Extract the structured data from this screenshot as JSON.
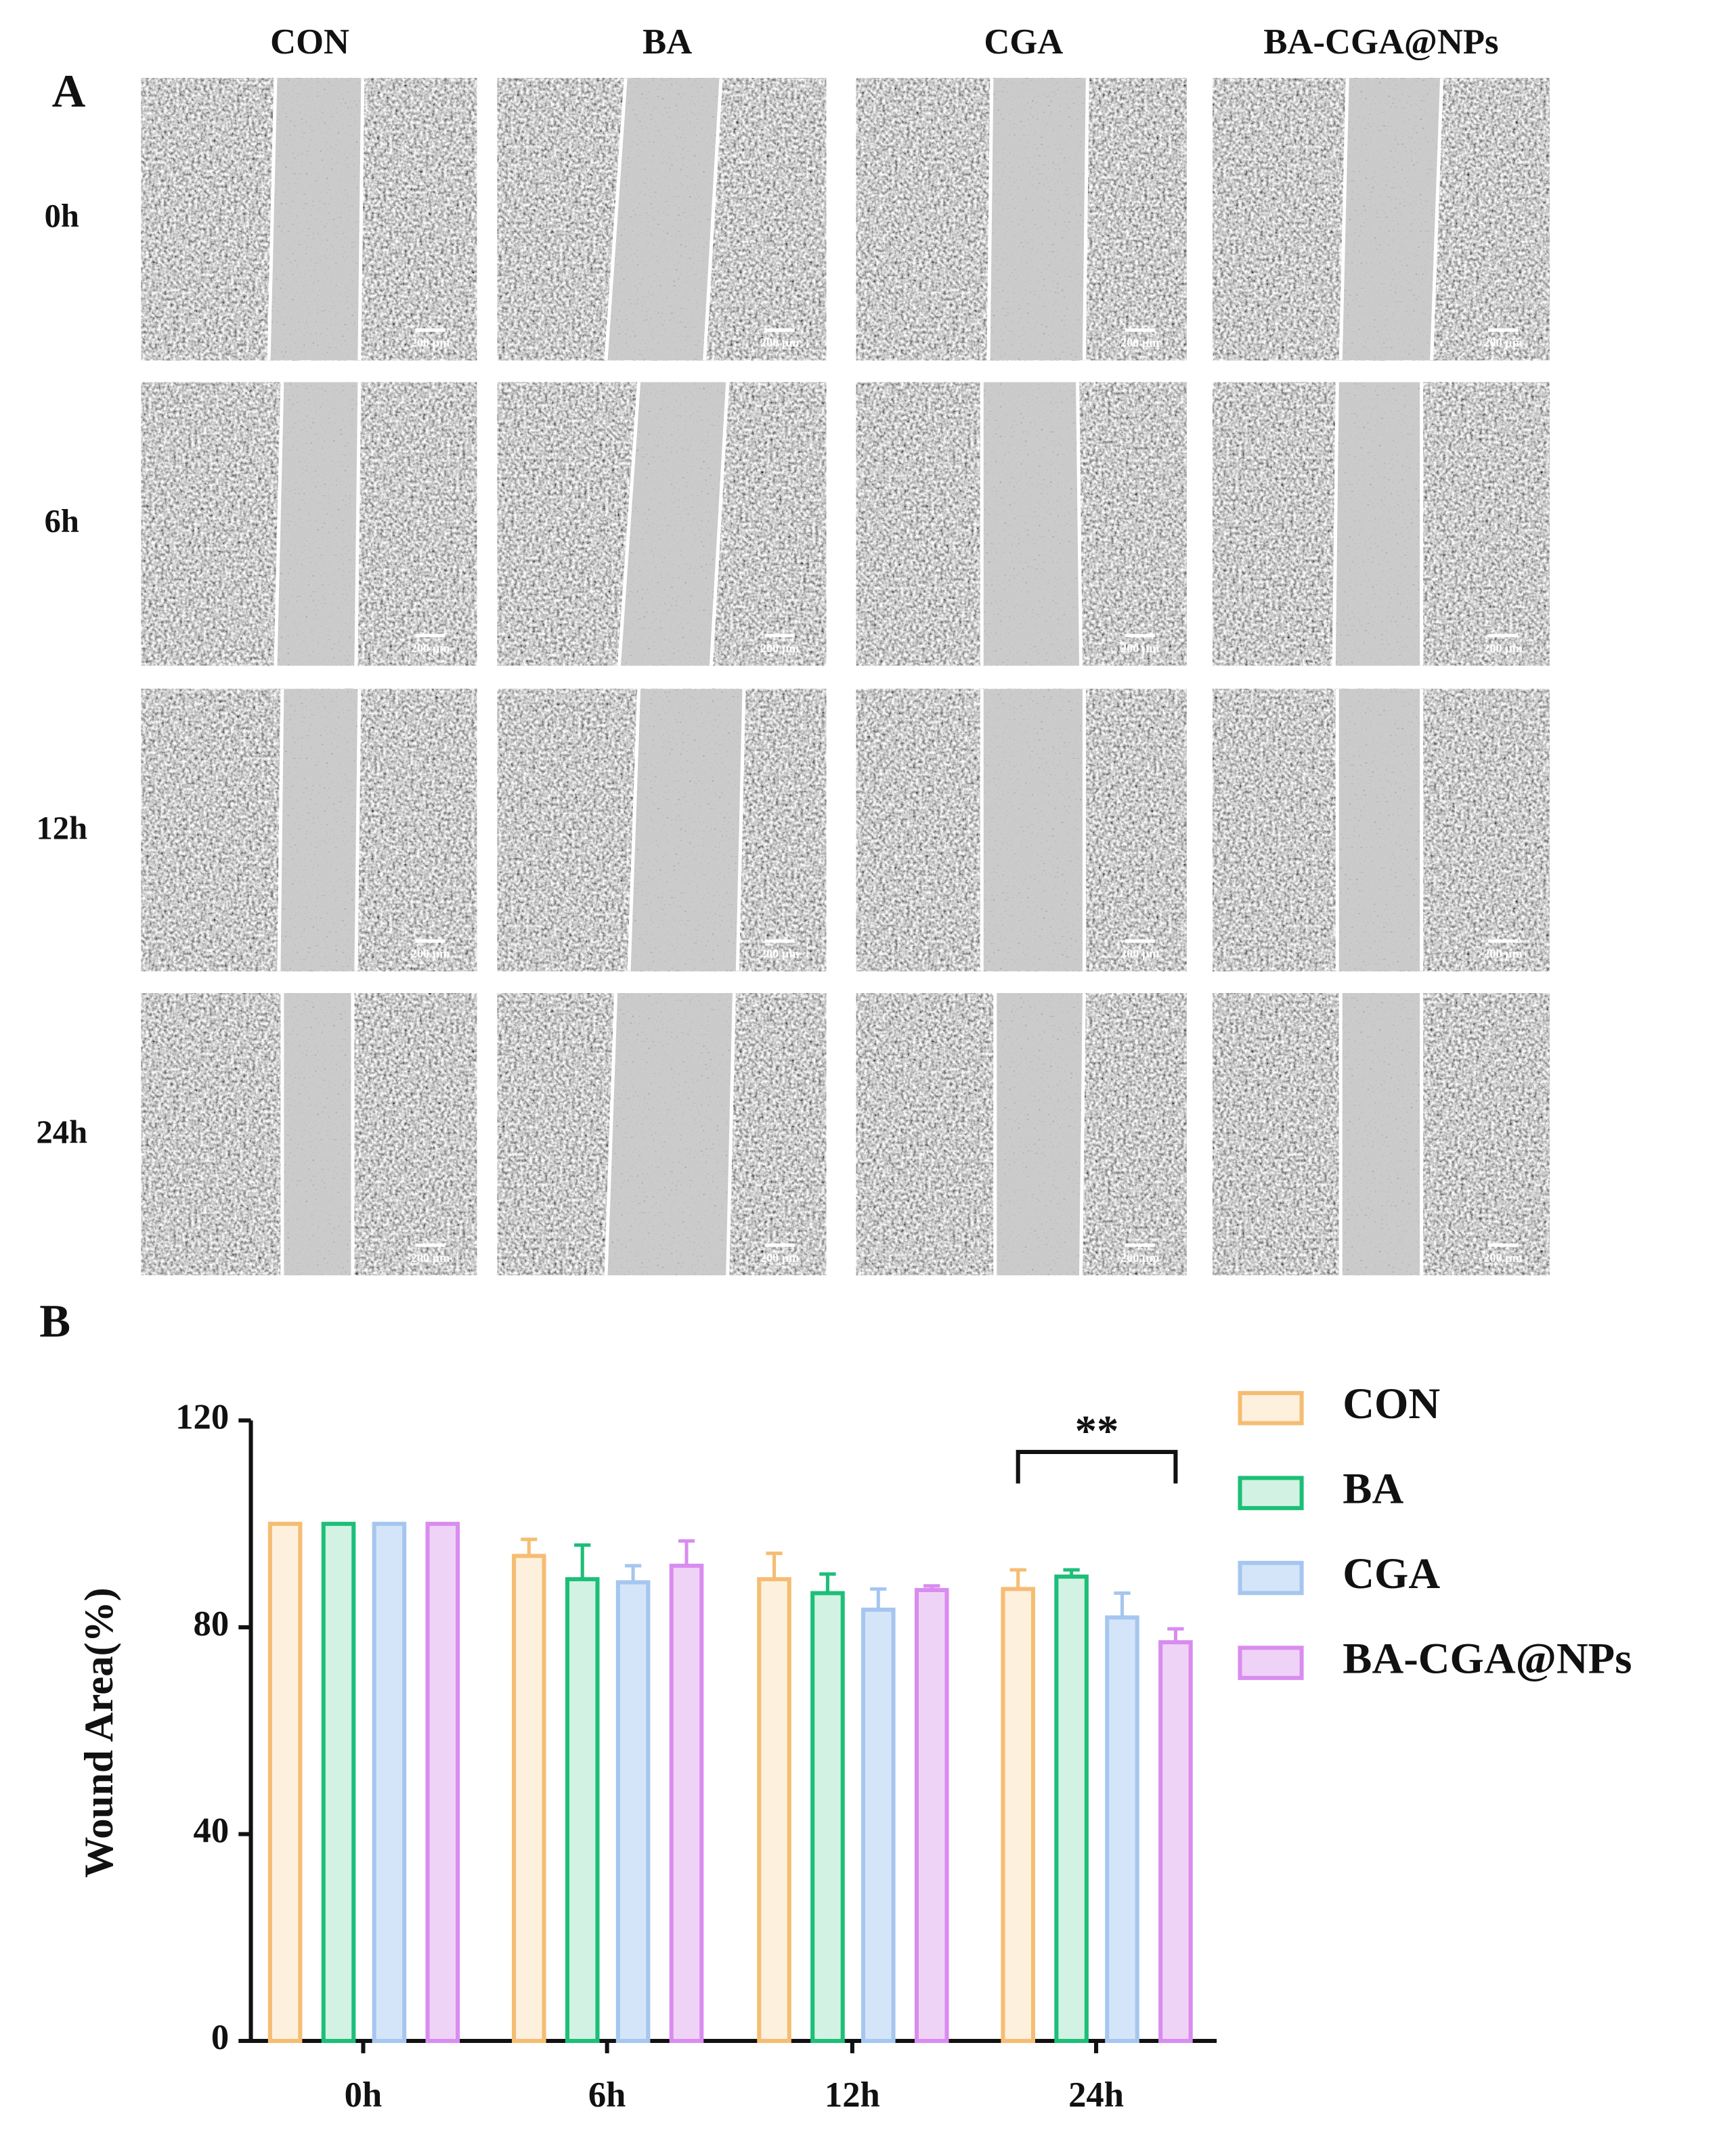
{
  "panel_a": {
    "label": "A",
    "columns": [
      "CON",
      "BA",
      "CGA",
      "BA-CGA@NPs"
    ],
    "rows": [
      "0h",
      "6h",
      "12h",
      "24h"
    ],
    "scale_bar": "200 µm"
  },
  "chart_data": {
    "type": "bar",
    "panel_label": "B",
    "y_label": "Wound Area(%)",
    "categories": [
      "0h",
      "6h",
      "12h",
      "24h"
    ],
    "series": [
      {
        "name": "CON",
        "color": "#f5bd73",
        "fill_color": "#fdf1de",
        "values": [
          100,
          93.8,
          89.3,
          87.4
        ],
        "errors": [
          0,
          3.2,
          5,
          3.7
        ]
      },
      {
        "name": "BA",
        "color": "#1dbf78",
        "fill_color": "#d2f3e3",
        "values": [
          100,
          89.3,
          86.6,
          89.8
        ],
        "errors": [
          0,
          6.6,
          3.7,
          1.3
        ]
      },
      {
        "name": "CGA",
        "color": "#a5c6ef",
        "fill_color": "#d5e5f9",
        "values": [
          100,
          88.7,
          83.4,
          81.9
        ],
        "errors": [
          0,
          3.2,
          4,
          4.7
        ]
      },
      {
        "name": "BA-CGA@NPs",
        "color": "#d98cef",
        "fill_color": "#efd3f7",
        "values": [
          100,
          91.9,
          87.2,
          77.1
        ],
        "errors": [
          0,
          4.8,
          0.8,
          2.6
        ]
      }
    ],
    "ylim": [
      0,
      120
    ],
    "yticks": [
      0,
      40,
      80,
      120
    ],
    "legend": "right",
    "annotation": "**"
  }
}
